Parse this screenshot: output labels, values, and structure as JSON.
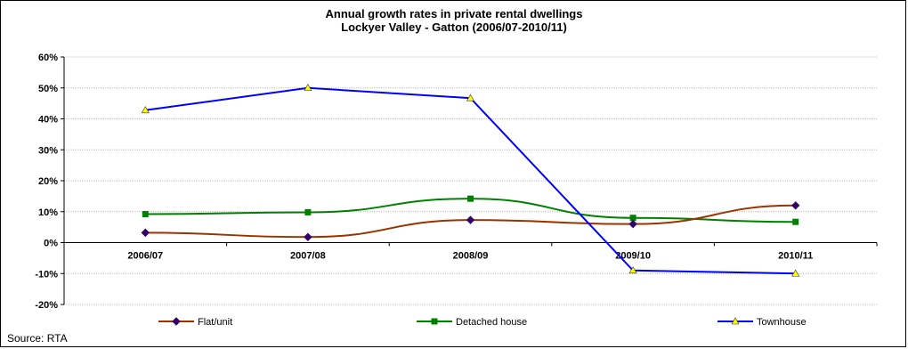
{
  "chart_data": {
    "type": "line",
    "title": "Annual growth rates in private rental dwellings",
    "subtitle": "Lockyer Valley - Gatton (2006/07-2010/11)",
    "categories": [
      "2006/07",
      "2007/08",
      "2008/09",
      "2009/10",
      "2010/11"
    ],
    "ylim": [
      -20,
      60
    ],
    "yticks": [
      "-20%",
      "-10%",
      "0%",
      "10%",
      "20%",
      "30%",
      "40%",
      "50%",
      "60%"
    ],
    "ytick_values": [
      -20,
      -10,
      0,
      10,
      20,
      30,
      40,
      50,
      60
    ],
    "grid": true,
    "legend_position": "bottom",
    "series": [
      {
        "name": "Flat/unit",
        "values": [
          3.2,
          1.8,
          7.3,
          6.0,
          12.0
        ],
        "color": "#993300",
        "marker": "diamond",
        "marker_color": "#330066"
      },
      {
        "name": "Detached house",
        "values": [
          9.2,
          9.8,
          14.2,
          8.0,
          6.7
        ],
        "color": "#008000",
        "marker": "square",
        "marker_color": "#008000"
      },
      {
        "name": "Townhouse",
        "values": [
          42.8,
          50.0,
          46.7,
          -9.0,
          -10.0
        ],
        "color": "#0000ff",
        "marker": "triangle",
        "marker_color": "#ffff00"
      }
    ]
  },
  "source": "Source: RTA"
}
